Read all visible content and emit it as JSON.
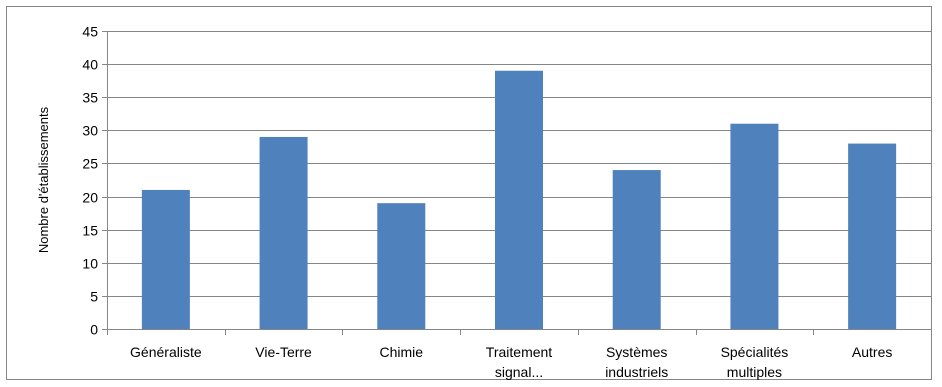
{
  "chart_data": {
    "type": "bar",
    "title": "",
    "xlabel": "",
    "ylabel": "Nombre d'établissements",
    "categories": [
      [
        "Généraliste"
      ],
      [
        "Vie-Terre"
      ],
      [
        "Chimie"
      ],
      [
        "Traitement",
        "signal..."
      ],
      [
        "Systèmes",
        "industriels"
      ],
      [
        "Spécialités",
        "multiples"
      ],
      [
        "Autres"
      ]
    ],
    "values": [
      21,
      29,
      19,
      39,
      24,
      31,
      28
    ],
    "ylim": [
      0,
      45
    ],
    "yticks": [
      0,
      5,
      10,
      15,
      20,
      25,
      30,
      35,
      40,
      45
    ],
    "grid": true,
    "legend": "none",
    "colors": {
      "bar": "#4F81BD",
      "gridline": "#868686",
      "axis": "#868686",
      "frame": "#868686"
    }
  }
}
